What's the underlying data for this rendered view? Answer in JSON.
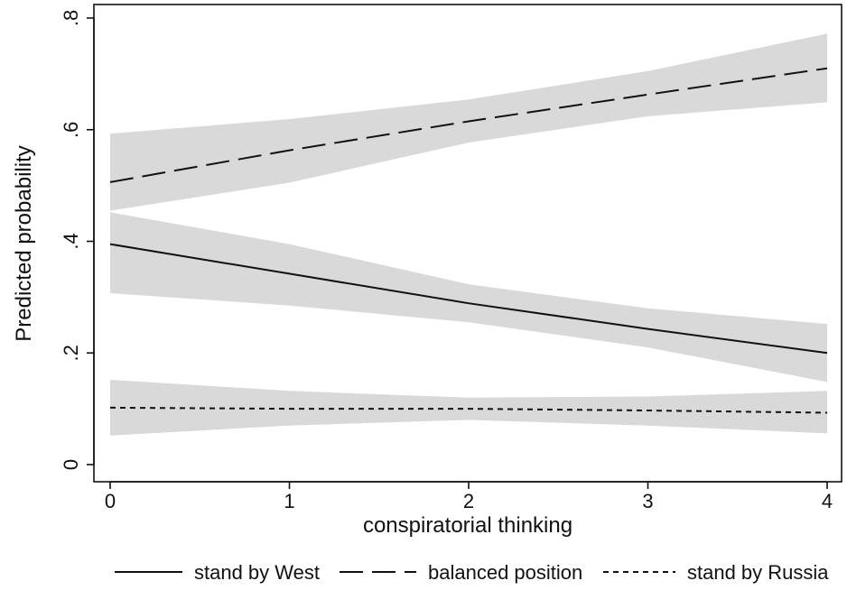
{
  "chart_data": {
    "type": "line",
    "title": "",
    "xlabel": "conspiratorial thinking",
    "ylabel": "Predicted probability",
    "xlim": [
      0,
      4
    ],
    "ylim": [
      0,
      0.8
    ],
    "x_ticks": [
      0,
      1,
      2,
      3,
      4
    ],
    "x_tick_labels": [
      "0",
      "1",
      "2",
      "3",
      "4"
    ],
    "y_ticks": [
      0,
      0.2,
      0.4,
      0.6,
      0.8
    ],
    "y_tick_labels": [
      "0",
      ".2",
      ".4",
      ".6",
      ".8"
    ],
    "grid": false,
    "legend_position": "bottom",
    "band_color": "#d9d9d9",
    "line_color": "#111111",
    "x": [
      0,
      1,
      2,
      3,
      4
    ],
    "series": [
      {
        "name": "stand by West",
        "style": "solid",
        "values": [
          0.395,
          0.342,
          0.289,
          0.243,
          0.2
        ],
        "ci_lower": [
          0.307,
          0.285,
          0.255,
          0.21,
          0.148
        ],
        "ci_upper": [
          0.452,
          0.395,
          0.323,
          0.28,
          0.252
        ]
      },
      {
        "name": "balanced position",
        "style": "longdash",
        "values": [
          0.506,
          0.563,
          0.615,
          0.663,
          0.71
        ],
        "ci_lower": [
          0.455,
          0.505,
          0.577,
          0.624,
          0.649
        ],
        "ci_upper": [
          0.593,
          0.619,
          0.654,
          0.705,
          0.772
        ]
      },
      {
        "name": "stand by Russia",
        "style": "shortdash",
        "values": [
          0.102,
          0.1,
          0.1,
          0.097,
          0.093
        ],
        "ci_lower": [
          0.052,
          0.07,
          0.08,
          0.07,
          0.056
        ],
        "ci_upper": [
          0.152,
          0.132,
          0.12,
          0.122,
          0.132
        ]
      }
    ]
  }
}
